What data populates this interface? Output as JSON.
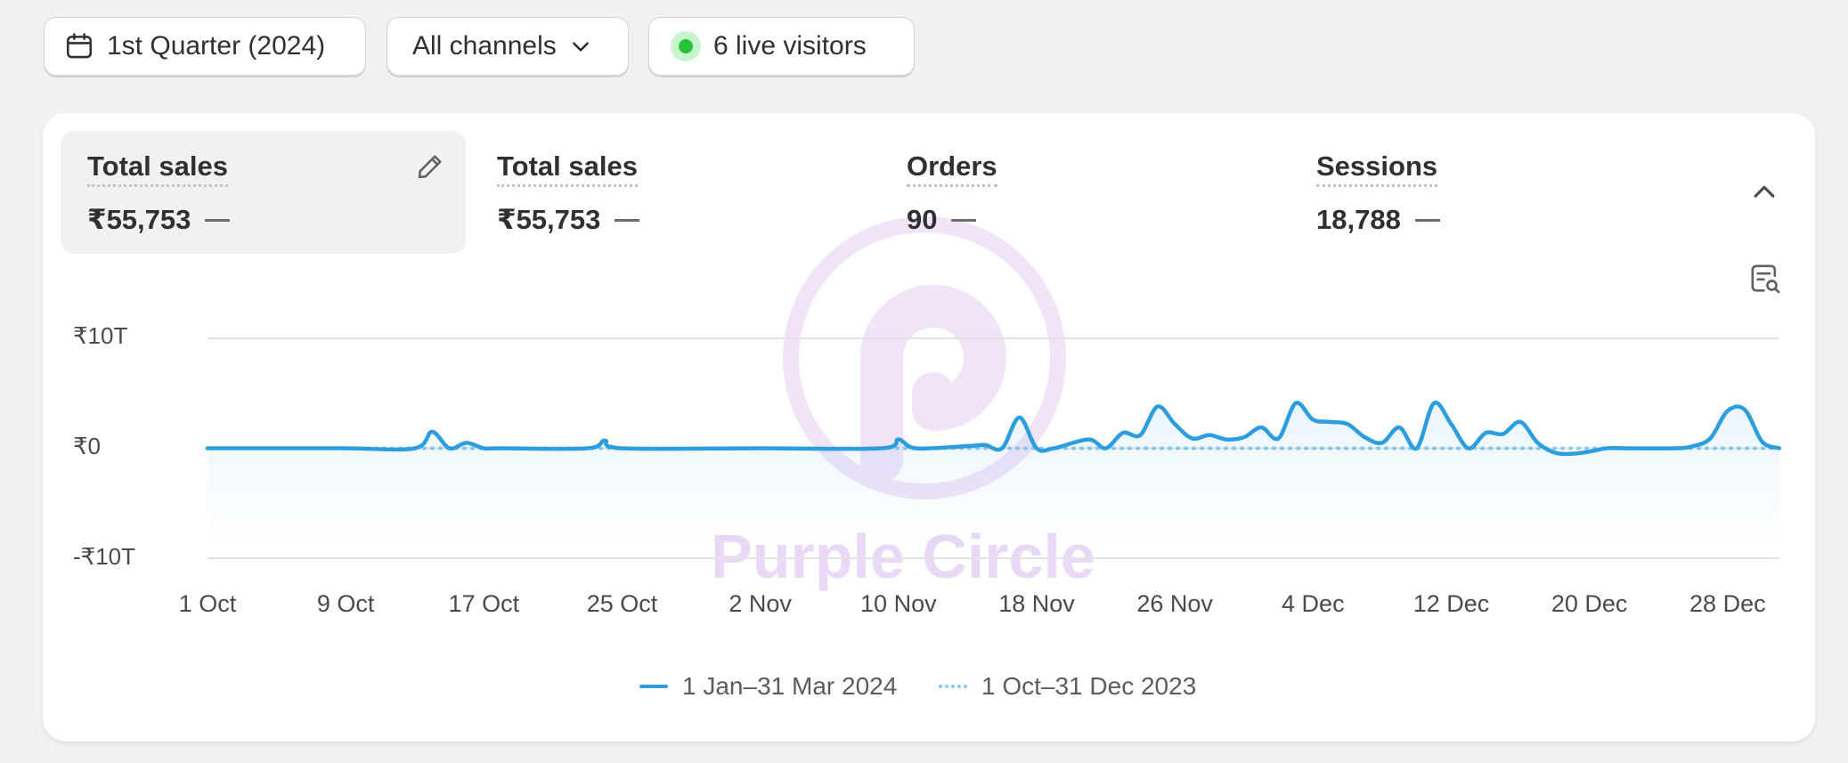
{
  "toolbar": {
    "date_range_label": "1st Quarter (2024)",
    "channel_label": "All channels",
    "live_visitors_label": "6 live visitors"
  },
  "metrics": [
    {
      "label": "Total sales",
      "value": "₹55,753",
      "selected": true
    },
    {
      "label": "Total sales",
      "value": "₹55,753",
      "selected": false
    },
    {
      "label": "Orders",
      "value": "90",
      "selected": false
    },
    {
      "label": "Sessions",
      "value": "18,788",
      "selected": false
    }
  ],
  "watermark": {
    "text": "Purple Circle"
  },
  "colors": {
    "series_current": "#2c9ddf",
    "series_previous": "#8cc8ec",
    "live_dot": "#25c535",
    "watermark": "#e9d8f6"
  },
  "chart_data": {
    "type": "line",
    "y_ticks": [
      "₹10T",
      "₹0",
      "-₹10T"
    ],
    "x_ticks": [
      "1 Oct",
      "9 Oct",
      "17 Oct",
      "25 Oct",
      "2 Nov",
      "10 Nov",
      "18 Nov",
      "26 Nov",
      "4 Dec",
      "12 Dec",
      "20 Dec",
      "28 Dec"
    ],
    "ylim": [
      -10,
      10
    ],
    "y_unit": "₹T",
    "legend_position": "bottom",
    "grid": true,
    "series": [
      {
        "name": "1 Jan–31 Mar 2024",
        "style": "solid",
        "x": [
          "1 Oct",
          "5 Oct",
          "9 Oct",
          "13 Oct",
          "14 Oct",
          "15 Oct",
          "16 Oct",
          "17 Oct",
          "18 Oct",
          "23 Oct",
          "24 Oct",
          "25 Oct",
          "2 Nov",
          "9 Nov",
          "10 Nov",
          "11 Nov",
          "14 Nov",
          "15 Nov",
          "16 Nov",
          "17 Nov",
          "18 Nov",
          "19 Nov",
          "21 Nov",
          "22 Nov",
          "23 Nov",
          "24 Nov",
          "25 Nov",
          "26 Nov",
          "27 Nov",
          "28 Nov",
          "29 Nov",
          "30 Nov",
          "1 Dec",
          "2 Dec",
          "3 Dec",
          "4 Dec",
          "5 Dec",
          "6 Dec",
          "7 Dec",
          "8 Dec",
          "9 Dec",
          "10 Dec",
          "11 Dec",
          "12 Dec",
          "13 Dec",
          "14 Dec",
          "15 Dec",
          "16 Dec",
          "17 Dec",
          "18 Dec",
          "19 Dec",
          "20 Dec",
          "21 Dec",
          "22 Dec",
          "25 Dec",
          "26 Dec",
          "27 Dec",
          "28 Dec",
          "29 Dec",
          "30 Dec",
          "31 Dec"
        ],
        "y": [
          0,
          0,
          0,
          0,
          1.5,
          0,
          0.5,
          0,
          0,
          0,
          0.7,
          0,
          0,
          0,
          0.8,
          0,
          0.2,
          0.3,
          0,
          2.8,
          0,
          0,
          0.8,
          0,
          1.4,
          1.2,
          3.8,
          2.2,
          0.9,
          1.2,
          0.8,
          1.0,
          1.9,
          0.9,
          4.1,
          2.6,
          2.4,
          2.2,
          1.0,
          0.5,
          1.9,
          0,
          4.1,
          2.2,
          0,
          1.4,
          1.3,
          2.4,
          0.5,
          -0.4,
          -0.5,
          -0.3,
          0,
          0,
          0,
          0.2,
          0.9,
          3.4,
          3.5,
          0.6,
          0
        ]
      },
      {
        "name": "1 Oct–31 Dec 2023",
        "style": "dotted",
        "x": [
          "1 Oct",
          "31 Dec"
        ],
        "y": [
          0,
          0
        ]
      }
    ]
  }
}
